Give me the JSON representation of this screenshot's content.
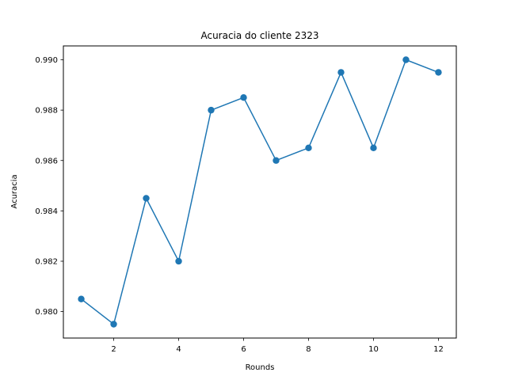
{
  "chart_data": {
    "type": "line",
    "title": "Acuracia do cliente 2323",
    "xlabel": "Rounds",
    "ylabel": "Acuracia",
    "x": [
      1,
      2,
      3,
      4,
      5,
      6,
      7,
      8,
      9,
      10,
      11,
      12
    ],
    "series": [
      {
        "values": [
          0.9805,
          0.9795,
          0.9845,
          0.982,
          0.988,
          0.9885,
          0.986,
          0.9865,
          0.9895,
          0.9865,
          0.99,
          0.9895
        ]
      }
    ],
    "xlim": [
      0.45,
      12.55
    ],
    "ylim": [
      0.97895,
      0.99055
    ],
    "xticks": [
      2,
      4,
      6,
      8,
      10,
      12
    ],
    "xtick_labels": [
      "2",
      "4",
      "6",
      "8",
      "10",
      "12"
    ],
    "yticks": [
      0.98,
      0.982,
      0.984,
      0.986,
      0.988,
      0.99
    ],
    "ytick_labels": [
      "0.980",
      "0.982",
      "0.984",
      "0.986",
      "0.988",
      "0.990"
    ],
    "grid": false,
    "color": "#1f77b4",
    "marker": "circle"
  }
}
